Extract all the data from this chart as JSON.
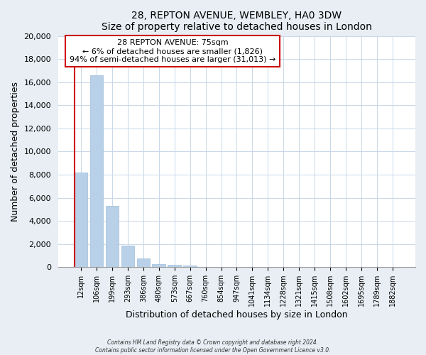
{
  "title": "28, REPTON AVENUE, WEMBLEY, HA0 3DW",
  "subtitle": "Size of property relative to detached houses in London",
  "xlabel": "Distribution of detached houses by size in London",
  "ylabel": "Number of detached properties",
  "bar_labels": [
    "12sqm",
    "106sqm",
    "199sqm",
    "293sqm",
    "386sqm",
    "480sqm",
    "573sqm",
    "667sqm",
    "760sqm",
    "854sqm",
    "947sqm",
    "1041sqm",
    "1134sqm",
    "1228sqm",
    "1321sqm",
    "1415sqm",
    "1508sqm",
    "1602sqm",
    "1695sqm",
    "1789sqm",
    "1882sqm"
  ],
  "bar_values": [
    8200,
    16600,
    5300,
    1850,
    780,
    270,
    200,
    150,
    0,
    0,
    0,
    0,
    0,
    0,
    0,
    0,
    0,
    0,
    0,
    0,
    0
  ],
  "bar_color": "#b8d0e8",
  "bar_edge_color": "#a0bcd8",
  "annotation_line1": "28 REPTON AVENUE: 75sqm",
  "annotation_line2": "← 6% of detached houses are smaller (1,826)",
  "annotation_line3": "94% of semi-detached houses are larger (31,013) →",
  "annotation_box_edge_color": "#cc0000",
  "marker_line_color": "#cc0000",
  "ylim": [
    0,
    20000
  ],
  "yticks": [
    0,
    2000,
    4000,
    6000,
    8000,
    10000,
    12000,
    14000,
    16000,
    18000,
    20000
  ],
  "footer_line1": "Contains HM Land Registry data © Crown copyright and database right 2024.",
  "footer_line2": "Contains public sector information licensed under the Open Government Licence v3.0.",
  "background_color": "#e8eef4",
  "plot_bg_color": "#ffffff",
  "grid_color": "#c8d8e8"
}
